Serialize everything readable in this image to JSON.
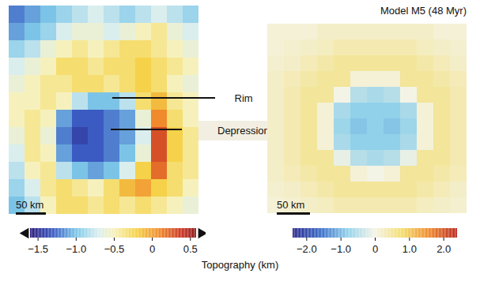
{
  "chart_data": [
    {
      "type": "heatmap",
      "cells": [
        [
          -1.2,
          -1.1,
          -1.0,
          -0.9,
          -0.8,
          -0.7,
          -0.8,
          -0.9,
          -0.8,
          -0.7,
          -0.8,
          -0.9
        ],
        [
          -1.1,
          -1.0,
          -0.9,
          -0.7,
          -0.6,
          -0.6,
          -0.7,
          -0.6,
          -0.5,
          -0.4,
          -0.6,
          -0.7
        ],
        [
          -0.9,
          -0.8,
          -0.6,
          -0.5,
          -0.4,
          -0.5,
          -0.4,
          -0.3,
          -0.3,
          -0.4,
          -0.5,
          -0.6
        ],
        [
          -0.7,
          -0.6,
          -0.5,
          -0.3,
          -0.3,
          -0.4,
          -0.3,
          -0.3,
          -0.2,
          -0.3,
          -0.4,
          -0.5
        ],
        [
          -0.6,
          -0.5,
          -0.4,
          -0.4,
          -0.3,
          -0.3,
          -0.4,
          -0.3,
          -0.2,
          -0.3,
          -0.5,
          -0.6
        ],
        [
          -0.5,
          -0.5,
          -0.4,
          -0.5,
          -0.8,
          -1.0,
          -1.0,
          -0.8,
          -0.3,
          -0.1,
          -0.4,
          -0.5
        ],
        [
          -0.5,
          -0.4,
          -0.5,
          -1.1,
          -1.3,
          -1.3,
          -1.2,
          -1.1,
          -0.6,
          0.1,
          -0.3,
          -0.5
        ],
        [
          -0.6,
          -0.4,
          -0.6,
          -1.2,
          -1.4,
          -1.3,
          -1.2,
          -1.1,
          -0.7,
          0.3,
          -0.2,
          -0.4
        ],
        [
          -0.7,
          -0.4,
          -0.5,
          -1.1,
          -1.3,
          -1.3,
          -1.2,
          -1.0,
          -0.6,
          0.3,
          -0.2,
          -0.4
        ],
        [
          -0.8,
          -0.5,
          -0.4,
          -0.8,
          -1.0,
          -1.1,
          -1.0,
          -0.7,
          -0.2,
          0.2,
          -0.3,
          -0.4
        ],
        [
          -0.9,
          -0.7,
          -0.4,
          -0.3,
          -0.4,
          -0.5,
          -0.3,
          -0.1,
          0.0,
          -0.2,
          -0.3,
          -0.5
        ],
        [
          -1.0,
          -0.8,
          -0.5,
          -0.3,
          -0.3,
          -0.4,
          -0.3,
          -0.4,
          -0.3,
          -0.4,
          -0.5,
          -0.6
        ]
      ],
      "tick_labels": false,
      "annotations": [
        "Rim",
        "Depression"
      ],
      "scale_bar": "50 km",
      "colorbar": {
        "label": "Topography (km)",
        "range": [
          -1.6,
          0.58
        ],
        "ticks": [
          {
            "value": -1.5,
            "label": "−1.5"
          },
          {
            "value": -1.0,
            "label": "−1.0"
          },
          {
            "value": -0.5,
            "label": "−0.5"
          },
          0,
          0.5
        ],
        "marker": "arrow"
      }
    },
    {
      "type": "heatmap",
      "title": "Model M5 (48 Myr)",
      "cells": [
        [
          0.1,
          0.1,
          0.1,
          0.2,
          0.2,
          0.2,
          0.2,
          0.2,
          0.2,
          0.2,
          0.1,
          0.1
        ],
        [
          0.1,
          0.15,
          0.2,
          0.25,
          0.35,
          0.35,
          0.35,
          0.35,
          0.35,
          0.25,
          0.2,
          0.15
        ],
        [
          0.15,
          0.2,
          0.3,
          0.4,
          0.5,
          0.5,
          0.5,
          0.5,
          0.5,
          0.4,
          0.3,
          0.2
        ],
        [
          0.2,
          0.3,
          0.4,
          0.5,
          0.5,
          0.1,
          0.1,
          0.1,
          0.5,
          0.5,
          0.4,
          0.3
        ],
        [
          0.2,
          0.35,
          0.5,
          0.5,
          0.0,
          -0.5,
          -0.6,
          -0.5,
          0.0,
          0.5,
          0.5,
          0.35
        ],
        [
          0.2,
          0.35,
          0.5,
          0.1,
          -0.6,
          -0.8,
          -0.8,
          -0.8,
          -0.6,
          0.1,
          0.5,
          0.35
        ],
        [
          0.2,
          0.35,
          0.5,
          0.1,
          -0.7,
          -0.9,
          -0.8,
          -0.9,
          -0.7,
          0.1,
          0.5,
          0.35
        ],
        [
          0.2,
          0.35,
          0.5,
          0.1,
          -0.6,
          -0.8,
          -0.8,
          -0.8,
          -0.6,
          0.1,
          0.5,
          0.35
        ],
        [
          0.2,
          0.35,
          0.5,
          0.5,
          -0.1,
          -0.5,
          -0.6,
          -0.5,
          -0.1,
          0.5,
          0.5,
          0.35
        ],
        [
          0.2,
          0.3,
          0.4,
          0.5,
          0.5,
          0.1,
          0.0,
          0.1,
          0.5,
          0.5,
          0.4,
          0.3
        ],
        [
          0.15,
          0.2,
          0.3,
          0.4,
          0.5,
          0.5,
          0.5,
          0.5,
          0.5,
          0.4,
          0.3,
          0.2
        ],
        [
          0.1,
          0.15,
          0.2,
          0.25,
          0.35,
          0.35,
          0.35,
          0.35,
          0.35,
          0.25,
          0.2,
          0.15
        ]
      ],
      "tick_labels": false,
      "scale_bar": "50 km",
      "colorbar": {
        "range": [
          -2.4,
          2.4
        ],
        "ticks": [
          {
            "value": -2.0,
            "label": "−2.0"
          },
          {
            "value": -1.0,
            "label": "−1.0"
          },
          0,
          {
            "value": 1.0,
            "label": "1.0"
          },
          {
            "value": 2.0,
            "label": "2.0"
          }
        ]
      }
    }
  ]
}
